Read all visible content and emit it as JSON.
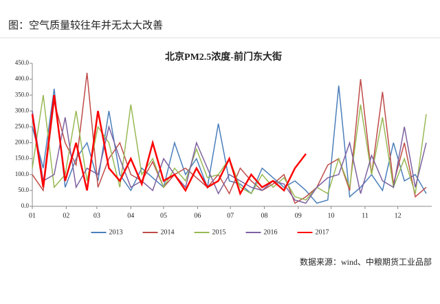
{
  "header": "图：空气质量较往年并无太大改善",
  "source": "数据来源：wind、中粮期货工业品部",
  "chart_data": {
    "type": "line",
    "title": "北京PM2.5浓度-前门东大街",
    "x": [
      0,
      10,
      20,
      30,
      40,
      50,
      60,
      70,
      80,
      90,
      100,
      110,
      120,
      130,
      140,
      150,
      160,
      170,
      180,
      190,
      200,
      210,
      220,
      230,
      240,
      250,
      260,
      270,
      280,
      290,
      300,
      310,
      320,
      330,
      340,
      350,
      360
    ],
    "xlim": [
      0,
      365
    ],
    "xticks": [
      {
        "value": 0,
        "label": "01"
      },
      {
        "value": 31,
        "label": "02"
      },
      {
        "value": 59,
        "label": "03"
      },
      {
        "value": 90,
        "label": "04"
      },
      {
        "value": 120,
        "label": "05"
      },
      {
        "value": 151,
        "label": "06"
      },
      {
        "value": 181,
        "label": "07"
      },
      {
        "value": 212,
        "label": "08"
      },
      {
        "value": 243,
        "label": "09"
      },
      {
        "value": 273,
        "label": "10"
      },
      {
        "value": 304,
        "label": "11"
      },
      {
        "value": 334,
        "label": "12"
      }
    ],
    "ylim": [
      0,
      450
    ],
    "yticks": [
      {
        "value": 0,
        "label": "0.0"
      },
      {
        "value": 50,
        "label": "50.0"
      },
      {
        "value": 100,
        "label": "100.0"
      },
      {
        "value": 150,
        "label": "150.0"
      },
      {
        "value": 200,
        "label": "200.0"
      },
      {
        "value": 250,
        "label": "250.0"
      },
      {
        "value": 300,
        "label": "300.0"
      },
      {
        "value": 350,
        "label": "350.0"
      },
      {
        "value": 400,
        "label": "400.0"
      },
      {
        "value": 450,
        "label": "450.0"
      }
    ],
    "legend": "bottom",
    "series": [
      {
        "name": "2013",
        "color": "#4a7ebb",
        "values": [
          250,
          120,
          370,
          60,
          150,
          200,
          80,
          300,
          100,
          50,
          120,
          90,
          60,
          200,
          100,
          150,
          60,
          260,
          80,
          70,
          40,
          120,
          90,
          60,
          80,
          50,
          10,
          20,
          380,
          30,
          60,
          100,
          50,
          200,
          80,
          100,
          40
        ]
      },
      {
        "name": "2014",
        "color": "#be4b48",
        "values": [
          100,
          50,
          330,
          200,
          130,
          420,
          60,
          150,
          200,
          100,
          80,
          140,
          60,
          100,
          120,
          90,
          60,
          100,
          40,
          120,
          80,
          50,
          70,
          100,
          10,
          30,
          60,
          130,
          150,
          50,
          400,
          100,
          360,
          70,
          200,
          30,
          60
        ]
      },
      {
        "name": "2015",
        "color": "#98b954",
        "values": [
          120,
          350,
          60,
          100,
          300,
          80,
          250,
          200,
          60,
          320,
          100,
          150,
          60,
          120,
          80,
          180,
          90,
          100,
          150,
          60,
          40,
          100,
          60,
          90,
          30,
          20,
          60,
          40,
          150,
          60,
          320,
          100,
          280,
          60,
          150,
          40,
          290
        ]
      },
      {
        "name": "2016",
        "color": "#7d60a0",
        "values": [
          300,
          80,
          100,
          280,
          60,
          120,
          100,
          250,
          150,
          60,
          80,
          50,
          150,
          100,
          60,
          200,
          120,
          40,
          100,
          80,
          60,
          50,
          80,
          70,
          20,
          10,
          60,
          90,
          100,
          200,
          40,
          160,
          80,
          60,
          250,
          60,
          200
        ]
      },
      {
        "name": "2017",
        "color": "#ff0000",
        "values": [
          290,
          60,
          350,
          80,
          200,
          50,
          300,
          120,
          80,
          150,
          70,
          200,
          80,
          100,
          50,
          120,
          60,
          80,
          150,
          40,
          100,
          60,
          80,
          50,
          120,
          165,
          null,
          null,
          null,
          null,
          null,
          null,
          null,
          null,
          null,
          null,
          null
        ]
      }
    ]
  }
}
